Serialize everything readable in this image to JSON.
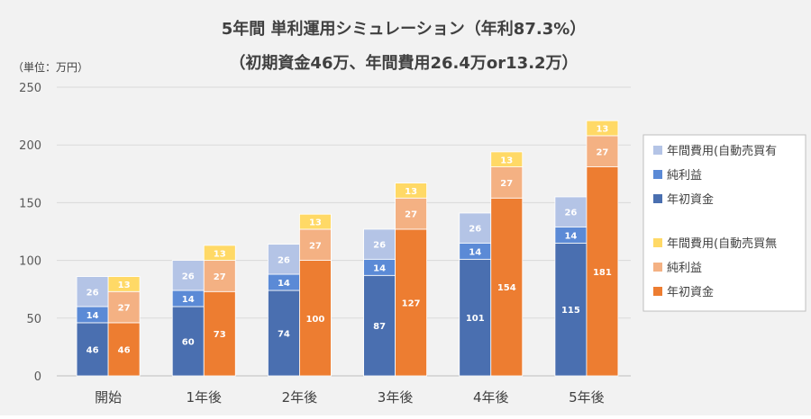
{
  "chart_data": {
    "type": "bar",
    "subtype": "stacked",
    "title": "5年間 単利運用シミュレーション（年利87.3%）",
    "subtitle": "（初期資金46万、年間費用26.4万or13.2万）",
    "ylabel": "（単位：万円）",
    "ylim": [
      0,
      250
    ],
    "yticks": [
      0,
      50,
      100,
      150,
      200,
      250
    ],
    "grid": true,
    "legend_position": "right",
    "categories": [
      "開始",
      "1年後",
      "2年後",
      "3年後",
      "4年後",
      "5年後"
    ],
    "groups": [
      {
        "color_theme": "blue",
        "series": [
          {
            "name": "年初資金",
            "values": [
              46,
              60,
              74,
              87,
              101,
              115
            ],
            "color": "#4a6fb0"
          },
          {
            "name": "純利益",
            "values": [
              14,
              14,
              14,
              14,
              14,
              14
            ],
            "color": "#5b8ad6"
          },
          {
            "name": "年間費用(自動売買有",
            "values": [
              26,
              26,
              26,
              26,
              26,
              26
            ],
            "color": "#b4c4e6"
          }
        ]
      },
      {
        "color_theme": "orange",
        "series": [
          {
            "name": "年初資金",
            "values": [
              46,
              73,
              100,
              127,
              154,
              181
            ],
            "color": "#ed7d31"
          },
          {
            "name": "純利益",
            "values": [
              27,
              27,
              27,
              27,
              27,
              27
            ],
            "color": "#f4b183"
          },
          {
            "name": "年間費用(自動売買無",
            "values": [
              13,
              13,
              13,
              13,
              13,
              13
            ],
            "color": "#ffd966"
          }
        ]
      }
    ]
  }
}
